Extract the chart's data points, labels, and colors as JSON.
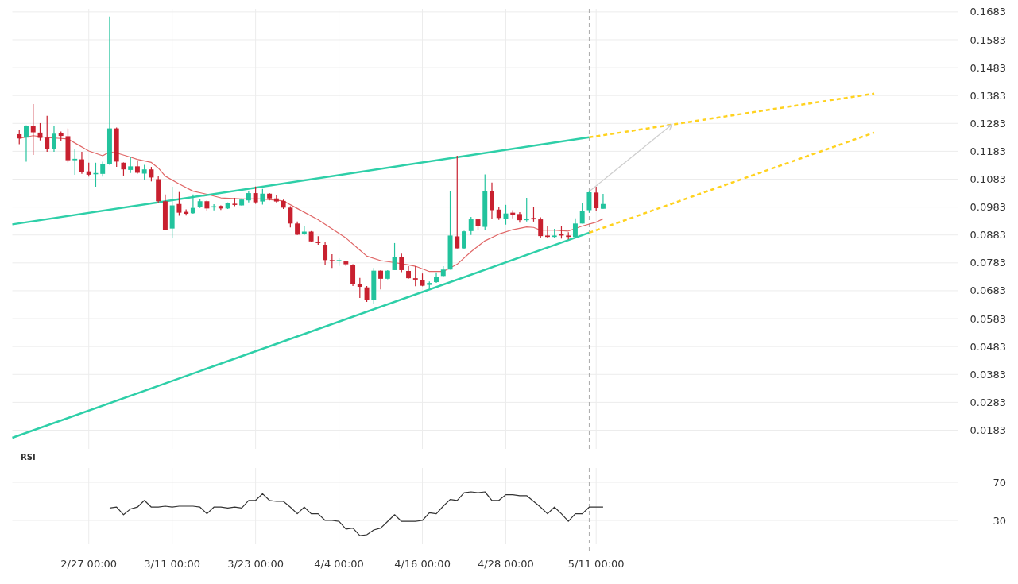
{
  "chart_data": [
    {
      "type": "candlestick",
      "x": [
        "--02-17",
        "--02-18",
        "--02-19",
        "--02-20",
        "--02-21",
        "--02-22",
        "--02-23",
        "--02-24",
        "--02-25",
        "--02-26",
        "--02-27",
        "--02-28",
        "--03-01",
        "--03-02",
        "--03-03",
        "--03-04",
        "--03-05",
        "--03-06",
        "--03-07",
        "--03-08",
        "--03-09",
        "--03-10",
        "--03-11",
        "--03-12",
        "--03-13",
        "--03-14",
        "--03-15",
        "--03-16",
        "--03-17",
        "--03-18",
        "--03-19",
        "--03-20",
        "--03-21",
        "--03-22",
        "--03-23",
        "--03-24",
        "--03-25",
        "--03-26",
        "--03-27",
        "--03-28",
        "--03-29",
        "--03-30",
        "--03-31",
        "--04-01",
        "--04-02",
        "--04-03",
        "--04-04",
        "--04-05",
        "--04-06",
        "--04-07",
        "--04-08",
        "--04-09",
        "--04-10",
        "--04-11",
        "--04-12",
        "--04-13",
        "--04-14",
        "--04-15",
        "--04-16",
        "--04-17",
        "--04-18",
        "--04-19",
        "--04-20",
        "--04-21",
        "--04-22",
        "--04-23",
        "--04-24",
        "--04-25",
        "--04-26",
        "--04-27",
        "--04-28",
        "--04-29",
        "--04-30",
        "--05-01",
        "--05-02",
        "--05-03",
        "--05-04",
        "--05-05",
        "--05-06",
        "--05-07",
        "--05-08",
        "--05-09",
        "--05-10",
        "--05-11",
        "--05-12"
      ],
      "ohlc": [
        [
          0.1244,
          0.126,
          0.1208,
          0.1229
        ],
        [
          0.1232,
          0.1276,
          0.1146,
          0.1274
        ],
        [
          0.1274,
          0.1352,
          0.117,
          0.1251
        ],
        [
          0.125,
          0.1284,
          0.1222,
          0.1231
        ],
        [
          0.1232,
          0.131,
          0.1181,
          0.1191
        ],
        [
          0.1191,
          0.1273,
          0.1181,
          0.1246
        ],
        [
          0.1247,
          0.1254,
          0.1218,
          0.1238
        ],
        [
          0.1237,
          0.1265,
          0.1143,
          0.1151
        ],
        [
          0.1151,
          0.1191,
          0.1099,
          0.1156
        ],
        [
          0.1154,
          0.1181,
          0.1102,
          0.1108
        ],
        [
          0.1111,
          0.1142,
          0.1092,
          0.1099
        ],
        [
          0.1101,
          0.1142,
          0.1056,
          0.1105
        ],
        [
          0.1102,
          0.1146,
          0.1092,
          0.1136
        ],
        [
          0.1137,
          0.1666,
          0.1134,
          0.1265
        ],
        [
          0.1265,
          0.1268,
          0.1127,
          0.1146
        ],
        [
          0.1142,
          0.1143,
          0.1096,
          0.1118
        ],
        [
          0.1116,
          0.1161,
          0.1105,
          0.1129
        ],
        [
          0.1129,
          0.1148,
          0.1103,
          0.1106
        ],
        [
          0.1103,
          0.1134,
          0.108,
          0.1118
        ],
        [
          0.1118,
          0.1127,
          0.1075,
          0.1089
        ],
        [
          0.1083,
          0.1096,
          0.0999,
          0.1004
        ],
        [
          0.1004,
          0.1028,
          0.0899,
          0.0902
        ],
        [
          0.0906,
          0.1056,
          0.0871,
          0.0989
        ],
        [
          0.0994,
          0.1037,
          0.0952,
          0.0963
        ],
        [
          0.0966,
          0.0975,
          0.0953,
          0.0959
        ],
        [
          0.0961,
          0.1028,
          0.0959,
          0.098
        ],
        [
          0.0982,
          0.1013,
          0.098,
          0.1004
        ],
        [
          0.1004,
          0.1007,
          0.0969,
          0.0978
        ],
        [
          0.0982,
          0.0993,
          0.0971,
          0.0986
        ],
        [
          0.0987,
          0.0989,
          0.0973,
          0.0978
        ],
        [
          0.0978,
          0.1,
          0.0976,
          0.0998
        ],
        [
          0.0995,
          0.1016,
          0.0986,
          0.0992
        ],
        [
          0.0989,
          0.1014,
          0.0988,
          0.101
        ],
        [
          0.1007,
          0.1041,
          0.1,
          0.1033
        ],
        [
          0.1033,
          0.1057,
          0.0995,
          0.1
        ],
        [
          0.1003,
          0.1048,
          0.0992,
          0.1031
        ],
        [
          0.1031,
          0.1033,
          0.1007,
          0.1014
        ],
        [
          0.1014,
          0.1026,
          0.1,
          0.1003
        ],
        [
          0.1005,
          0.101,
          0.0976,
          0.0981
        ],
        [
          0.0981,
          0.0986,
          0.091,
          0.0924
        ],
        [
          0.0924,
          0.0931,
          0.0883,
          0.0884
        ],
        [
          0.0886,
          0.0914,
          0.0883,
          0.0895
        ],
        [
          0.0895,
          0.0897,
          0.0857,
          0.086
        ],
        [
          0.0859,
          0.0879,
          0.0848,
          0.0854
        ],
        [
          0.0848,
          0.0857,
          0.0776,
          0.0793
        ],
        [
          0.0793,
          0.0814,
          0.0765,
          0.0789
        ],
        [
          0.0789,
          0.08,
          0.0772,
          0.0793
        ],
        [
          0.0788,
          0.0791,
          0.0772,
          0.0778
        ],
        [
          0.0776,
          0.0778,
          0.07,
          0.0708
        ],
        [
          0.0707,
          0.0729,
          0.0657,
          0.0697
        ],
        [
          0.0695,
          0.07,
          0.0643,
          0.065
        ],
        [
          0.065,
          0.0765,
          0.0635,
          0.0755
        ],
        [
          0.0755,
          0.0757,
          0.0688,
          0.0726
        ],
        [
          0.0726,
          0.0757,
          0.0724,
          0.0755
        ],
        [
          0.0757,
          0.0854,
          0.0757,
          0.0805
        ],
        [
          0.0805,
          0.0816,
          0.075,
          0.0757
        ],
        [
          0.0754,
          0.0771,
          0.0726,
          0.0728
        ],
        [
          0.0728,
          0.0771,
          0.0699,
          0.0723
        ],
        [
          0.072,
          0.0745,
          0.0699,
          0.0701
        ],
        [
          0.0704,
          0.0716,
          0.0692,
          0.0711
        ],
        [
          0.0714,
          0.0749,
          0.0711,
          0.0733
        ],
        [
          0.0736,
          0.0771,
          0.0733,
          0.0759
        ],
        [
          0.0759,
          0.1039,
          0.0759,
          0.0881
        ],
        [
          0.0878,
          0.1167,
          0.0835,
          0.0835
        ],
        [
          0.0835,
          0.0898,
          0.0833,
          0.0896
        ],
        [
          0.0897,
          0.0948,
          0.0883,
          0.0939
        ],
        [
          0.0939,
          0.0941,
          0.09,
          0.0915
        ],
        [
          0.0912,
          0.11,
          0.09,
          0.1039
        ],
        [
          0.1039,
          0.1071,
          0.0939,
          0.0972
        ],
        [
          0.0974,
          0.0984,
          0.0937,
          0.0944
        ],
        [
          0.0941,
          0.0991,
          0.092,
          0.096
        ],
        [
          0.0963,
          0.0972,
          0.0943,
          0.0956
        ],
        [
          0.0958,
          0.0965,
          0.0927,
          0.0936
        ],
        [
          0.0936,
          0.1016,
          0.0931,
          0.0941
        ],
        [
          0.0944,
          0.0982,
          0.0931,
          0.0939
        ],
        [
          0.0939,
          0.0946,
          0.0874,
          0.0879
        ],
        [
          0.0881,
          0.0915,
          0.0872,
          0.0876
        ],
        [
          0.0876,
          0.0905,
          0.0872,
          0.0881
        ],
        [
          0.0886,
          0.0915,
          0.087,
          0.0881
        ],
        [
          0.0881,
          0.0893,
          0.0867,
          0.0876
        ],
        [
          0.0876,
          0.0943,
          0.0874,
          0.0924
        ],
        [
          0.0924,
          0.0996,
          0.0924,
          0.0969
        ],
        [
          0.0972,
          0.1039,
          0.0963,
          0.1036
        ],
        [
          0.1035,
          0.1056,
          0.0969,
          0.0979
        ],
        [
          0.0977,
          0.103,
          0.0977,
          0.0994
        ]
      ],
      "series": [
        {
          "type": "line",
          "color": "#e06666",
          "x": [
            "--02-17",
            "--02-19",
            "--02-21",
            "--02-23",
            "--02-24",
            "--02-25",
            "--02-27",
            "--03-01",
            "--03-02",
            "--03-03",
            "--03-05",
            "--03-06",
            "--03-08",
            "--03-09",
            "--03-10",
            "--03-12",
            "--03-14",
            "--03-16",
            "--03-18",
            "--03-21",
            "--03-24",
            "--03-27",
            "--03-29",
            "--04-01",
            "--04-03",
            "--04-05",
            "--04-07",
            "--04-08",
            "--04-10",
            "--04-12",
            "--04-14",
            "--04-15",
            "--04-17",
            "--04-19",
            "--04-21",
            "--04-23",
            "--04-25",
            "--04-27",
            "--04-29",
            "--05-01",
            "--05-02",
            "--05-03",
            "--05-05",
            "--05-07",
            "--05-09",
            "--05-11",
            "--05-12"
          ],
          "values": [
            0.1229,
            0.1239,
            0.1232,
            0.1229,
            0.1227,
            0.1213,
            0.1184,
            0.1167,
            0.1181,
            0.1177,
            0.1162,
            0.1154,
            0.1143,
            0.1123,
            0.1094,
            0.1066,
            0.104,
            0.1029,
            0.1016,
            0.1012,
            0.1012,
            0.1005,
            0.0978,
            0.0938,
            0.0905,
            0.0872,
            0.0829,
            0.0807,
            0.0791,
            0.0784,
            0.0776,
            0.0771,
            0.0752,
            0.0752,
            0.0778,
            0.0823,
            0.0862,
            0.0886,
            0.0902,
            0.0912,
            0.091,
            0.09,
            0.09,
            0.0897,
            0.0915,
            0.0929,
            0.0941
          ]
        },
        {
          "type": "line",
          "color": "#2ecfa8",
          "x": [
            "--02-16",
            "--05-10"
          ],
          "values": [
            0.0921,
            0.1233
          ]
        },
        {
          "type": "line",
          "color": "#2ecfa8",
          "x": [
            "--02-16",
            "--05-10"
          ],
          "values": [
            0.0156,
            0.0891
          ]
        },
        {
          "type": "line",
          "color": "#ffd21f",
          "line_style": "dashed",
          "x": [
            "--05-10",
            "--06-20"
          ],
          "values": [
            0.1233,
            0.139
          ]
        },
        {
          "type": "line",
          "color": "#ffd21f",
          "line_style": "dashed",
          "x": [
            "--05-10",
            "--06-20"
          ],
          "values": [
            0.0891,
            0.125
          ]
        }
      ],
      "xlim": [
        "--02-16",
        "--07-02"
      ],
      "xticks": [
        {
          "value": "--02-27",
          "label": null
        },
        {
          "value": "--03-11",
          "label": null
        },
        {
          "value": "--03-23",
          "label": null
        },
        {
          "value": "--04-04",
          "label": null
        },
        {
          "value": "--04-16",
          "label": null
        },
        {
          "value": "--04-28",
          "label": null
        },
        {
          "value": "--05-11",
          "label": null
        }
      ],
      "ylim": [
        0.0116,
        0.1694
      ],
      "yticks": [
        0.0183,
        0.0283,
        0.0383,
        0.0483,
        0.0583,
        0.0683,
        0.0783,
        0.0883,
        0.0983,
        0.1083,
        0.1183,
        0.1283,
        0.1383,
        0.1483,
        0.1583,
        0.1683
      ],
      "ref_lines": [
        {
          "axis": "x",
          "value": "--05-10",
          "color": "#aaaaaa",
          "line_style": "dashed"
        }
      ],
      "tick_labels": "y",
      "grid": true
    },
    {
      "type": "line",
      "title": "RSI",
      "x": [
        "--03-02",
        "--03-03",
        "--03-04",
        "--03-05",
        "--03-06",
        "--03-07",
        "--03-08",
        "--03-09",
        "--03-10",
        "--03-11",
        "--03-12",
        "--03-13",
        "--03-14",
        "--03-15",
        "--03-16",
        "--03-17",
        "--03-18",
        "--03-19",
        "--03-20",
        "--03-21",
        "--03-22",
        "--03-23",
        "--03-24",
        "--03-25",
        "--03-26",
        "--03-27",
        "--03-28",
        "--03-29",
        "--03-30",
        "--03-31",
        "--04-01",
        "--04-02",
        "--04-03",
        "--04-04",
        "--04-05",
        "--04-06",
        "--04-07",
        "--04-08",
        "--04-09",
        "--04-10",
        "--04-11",
        "--04-12",
        "--04-13",
        "--04-14",
        "--04-15",
        "--04-16",
        "--04-17",
        "--04-18",
        "--04-19",
        "--04-20",
        "--04-21",
        "--04-22",
        "--04-23",
        "--04-24",
        "--04-25",
        "--04-26",
        "--04-27",
        "--04-28",
        "--04-29",
        "--04-30",
        "--05-01",
        "--05-02",
        "--05-03",
        "--05-04",
        "--05-05",
        "--05-06",
        "--05-07",
        "--05-08",
        "--05-09",
        "--05-10",
        "--05-11",
        "--05-12"
      ],
      "series": [
        {
          "color": "#333333",
          "values": [
            43,
            44,
            36,
            42,
            44,
            51,
            44,
            44,
            45,
            44,
            45,
            45,
            45,
            44,
            37,
            44,
            44,
            43,
            44,
            43,
            51,
            51,
            58,
            51,
            50,
            50,
            44,
            37,
            44,
            37,
            37,
            30,
            30,
            29,
            21,
            22,
            14,
            15,
            20,
            22,
            29,
            36,
            29,
            29,
            29,
            30,
            38,
            37,
            45,
            52,
            51,
            59,
            60,
            59,
            60,
            51,
            51,
            57,
            57,
            56,
            56,
            50,
            44,
            37,
            44,
            37,
            29,
            37,
            37,
            44,
            44,
            44
          ]
        }
      ],
      "xlim": [
        "--02-16",
        "--07-02"
      ],
      "xticks": [
        {
          "value": "--02-27",
          "label": "2/27 00:00"
        },
        {
          "value": "--03-11",
          "label": "3/11 00:00"
        },
        {
          "value": "--03-23",
          "label": "3/23 00:00"
        },
        {
          "value": "--04-04",
          "label": "4/4 00:00"
        },
        {
          "value": "--04-16",
          "label": "4/16 00:00"
        },
        {
          "value": "--04-28",
          "label": "4/28 00:00"
        },
        {
          "value": "--05-11",
          "label": "5/11 00:00"
        }
      ],
      "ylim": [
        5,
        85
      ],
      "yticks": [
        30,
        70
      ],
      "ref_lines": [
        {
          "axis": "x",
          "value": "--05-10",
          "color": "#aaaaaa",
          "line_style": "dashed"
        }
      ],
      "grid": true
    }
  ]
}
